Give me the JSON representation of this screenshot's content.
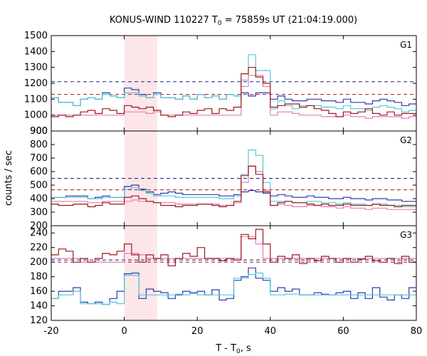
{
  "chart_data": {
    "type": "line",
    "title": "KONUS-WIND 110227 T0 = 75859s UT (21:04:19.000)",
    "title_parts": {
      "prefix": "KONUS-WIND 110227 T",
      "sub": "0",
      "suffix": " = 75859s UT (21:04:19.000)"
    },
    "xlabel_parts": {
      "prefix": "T - T",
      "sub": "0",
      "suffix": ", s"
    },
    "ylabel": "counts / sec",
    "xlim": [
      -20,
      80
    ],
    "x_ticks": [
      "-20",
      "0",
      "20",
      "40",
      "60",
      "80"
    ],
    "shaded_interval": [
      0,
      9
    ],
    "bin_edges": [
      -20,
      -18,
      -16,
      -14,
      -12,
      -10,
      -8,
      -6,
      -4,
      -2,
      0,
      2,
      4,
      6,
      8,
      10,
      12,
      14,
      16,
      18,
      20,
      22,
      24,
      26,
      28,
      30,
      32,
      34,
      36,
      38,
      40,
      42,
      44,
      46,
      48,
      50,
      52,
      54,
      56,
      58,
      60,
      62,
      64,
      66,
      68,
      70,
      72,
      74,
      76,
      78,
      80
    ],
    "panels": [
      {
        "label": "G1",
        "ylim": [
          900,
          1500
        ],
        "y_ticks": [
          "900",
          "1000",
          "1100",
          "1200",
          "1300",
          "1400",
          "1500"
        ],
        "thresholds": [
          {
            "value": 1210,
            "color": "#1a1a8c"
          },
          {
            "value": 1130,
            "color": "#a01818"
          }
        ],
        "series": [
          {
            "color": "#2c3ab0",
            "values": [
              1110,
              1080,
              1080,
              1060,
              1100,
              1110,
              1100,
              1140,
              1120,
              1110,
              1170,
              1160,
              1130,
              1110,
              1140,
              1110,
              1110,
              1100,
              1120,
              1100,
              1130,
              1110,
              1120,
              1100,
              1130,
              1120,
              1140,
              1120,
              1140,
              1140,
              1100,
              1120,
              1100,
              1090,
              1090,
              1100,
              1100,
              1090,
              1090,
              1080,
              1100,
              1080,
              1080,
              1070,
              1090,
              1100,
              1090,
              1080,
              1060,
              1070
            ]
          },
          {
            "color": "#55c8d4",
            "values": [
              1110,
              1080,
              1080,
              1060,
              1100,
              1110,
              1100,
              1130,
              1120,
              1110,
              1140,
              1140,
              1120,
              1110,
              1130,
              1110,
              1110,
              1100,
              1120,
              1100,
              1130,
              1110,
              1120,
              1100,
              1130,
              1120,
              1220,
              1380,
              1280,
              1280,
              1040,
              1090,
              1060,
              1040,
              1060,
              1060,
              1060,
              1050,
              1050,
              1040,
              1060,
              1040,
              1040,
              1030,
              1050,
              1060,
              1050,
              1040,
              1020,
              1030
            ]
          },
          {
            "color": "#e87bb4",
            "values": [
              1000,
              1000,
              1000,
              1000,
              1000,
              1000,
              1000,
              1000,
              1000,
              1000,
              1020,
              1020,
              1020,
              1010,
              1020,
              1000,
              1000,
              1000,
              1000,
              1000,
              1000,
              1000,
              1000,
              1000,
              1000,
              1000,
              1180,
              1250,
              1250,
              1180,
              1000,
              1020,
              1020,
              1010,
              1000,
              1000,
              1000,
              990,
              990,
              990,
              1000,
              990,
              990,
              980,
              990,
              990,
              990,
              990,
              980,
              990
            ]
          },
          {
            "color": "#9a1a1a",
            "values": [
              990,
              1000,
              990,
              1000,
              1020,
              1030,
              1010,
              1040,
              1030,
              1010,
              1060,
              1050,
              1040,
              1050,
              1030,
              1000,
              990,
              1000,
              1020,
              1010,
              1030,
              1040,
              1010,
              1040,
              1030,
              1050,
              1260,
              1300,
              1240,
              1200,
              1050,
              1060,
              1070,
              1070,
              1050,
              1060,
              1040,
              1030,
              1010,
              990,
              1020,
              1010,
              1020,
              1040,
              1010,
              1000,
              1020,
              1000,
              1010,
              1010
            ]
          }
        ]
      },
      {
        "label": "G2",
        "ylim": [
          200,
          900
        ],
        "y_ticks": [
          "200",
          "300",
          "400",
          "500",
          "600",
          "700",
          "800",
          "900"
        ],
        "thresholds": [
          {
            "value": 550,
            "color": "#1a1a8c"
          },
          {
            "value": 465,
            "color": "#a01818"
          }
        ],
        "series": [
          {
            "color": "#2c3ab0",
            "values": [
              410,
              410,
              420,
              420,
              420,
              400,
              410,
              420,
              410,
              410,
              490,
              500,
              470,
              450,
              430,
              440,
              450,
              440,
              430,
              430,
              430,
              430,
              430,
              420,
              420,
              430,
              450,
              460,
              450,
              440,
              420,
              430,
              420,
              410,
              410,
              420,
              410,
              410,
              400,
              400,
              410,
              400,
              400,
              390,
              400,
              400,
              390,
              390,
              380,
              380
            ]
          },
          {
            "color": "#55c8d4",
            "values": [
              410,
              410,
              410,
              410,
              410,
              400,
              400,
              410,
              410,
              410,
              470,
              480,
              460,
              440,
              420,
              420,
              420,
              410,
              410,
              410,
              410,
              410,
              410,
              400,
              400,
              420,
              580,
              760,
              720,
              520,
              380,
              380,
              380,
              370,
              370,
              380,
              380,
              370,
              370,
              360,
              370,
              360,
              360,
              350,
              360,
              360,
              350,
              350,
              340,
              340
            ]
          },
          {
            "color": "#e87bb4",
            "values": [
              380,
              380,
              380,
              380,
              380,
              370,
              370,
              380,
              380,
              380,
              380,
              390,
              380,
              380,
              370,
              370,
              370,
              360,
              360,
              360,
              360,
              360,
              360,
              350,
              350,
              370,
              520,
              640,
              600,
              460,
              350,
              360,
              350,
              340,
              340,
              350,
              350,
              340,
              340,
              330,
              340,
              330,
              330,
              320,
              330,
              330,
              320,
              320,
              320,
              320
            ]
          },
          {
            "color": "#9a1a1a",
            "values": [
              360,
              350,
              350,
              360,
              360,
              340,
              350,
              370,
              360,
              360,
              410,
              420,
              400,
              380,
              370,
              350,
              350,
              340,
              350,
              350,
              360,
              360,
              350,
              340,
              350,
              380,
              570,
              640,
              580,
              450,
              350,
              370,
              380,
              370,
              370,
              360,
              350,
              360,
              350,
              350,
              360,
              350,
              350,
              350,
              360,
              350,
              350,
              340,
              350,
              350
            ]
          }
        ]
      },
      {
        "label": "G3",
        "ylim": [
          120,
          250
        ],
        "y_ticks": [
          "120",
          "140",
          "160",
          "180",
          "200",
          "220",
          "240"
        ],
        "thresholds": [
          {
            "value": 203,
            "color": "#1a1a8c"
          },
          {
            "value": 200,
            "color": "#a01818"
          }
        ],
        "series": [
          {
            "color": "#2c3ab0",
            "values": [
              150,
              160,
              160,
              165,
              145,
              143,
              145,
              142,
              150,
              160,
              184,
              185,
              150,
              163,
              160,
              158,
              150,
              155,
              160,
              158,
              160,
              155,
              162,
              148,
              150,
              175,
              180,
              192,
              178,
              175,
              160,
              165,
              160,
              163,
              155,
              155,
              158,
              156,
              155,
              158,
              160,
              150,
              158,
              150,
              165,
              152,
              148,
              155,
              150,
              165
            ]
          },
          {
            "color": "#55c8d4",
            "values": [
              150,
              155,
              155,
              160,
              143,
              143,
              143,
              142,
              145,
              143,
              182,
              182,
              155,
              155,
              155,
              155,
              155,
              156,
              155,
              157,
              155,
              155,
              155,
              155,
              155,
              178,
              178,
              183,
              185,
              178,
              155,
              155,
              156,
              156,
              155,
              155,
              155,
              155,
              155,
              155,
              155,
              155,
              155,
              155,
              155,
              155,
              155,
              155,
              155,
              155
            ]
          },
          {
            "color": "#e87bb4",
            "values": [
              205,
              205,
              205,
              205,
              200,
              200,
              200,
              200,
              200,
              200,
              212,
              212,
              210,
              205,
              205,
              205,
              205,
              205,
              205,
              205,
              205,
              205,
              205,
              205,
              205,
              205,
              235,
              235,
              225,
              205,
              205,
              205,
              205,
              205,
              205,
              205,
              205,
              205,
              205,
              205,
              205,
              205,
              205,
              205,
              205,
              205,
              205,
              205,
              205,
              205
            ]
          },
          {
            "color": "#9a1a1a",
            "values": [
              210,
              218,
              215,
              200,
              205,
              200,
              205,
              212,
              210,
              215,
              225,
              210,
              200,
              210,
              205,
              210,
              195,
              205,
              212,
              208,
              220,
              205,
              205,
              202,
              205,
              203,
              238,
              232,
              245,
              225,
              200,
              208,
              205,
              210,
              198,
              205,
              202,
              208,
              205,
              200,
              205,
              200,
              204,
              208,
              202,
              200,
              205,
              198,
              208,
              200
            ]
          }
        ]
      }
    ]
  }
}
